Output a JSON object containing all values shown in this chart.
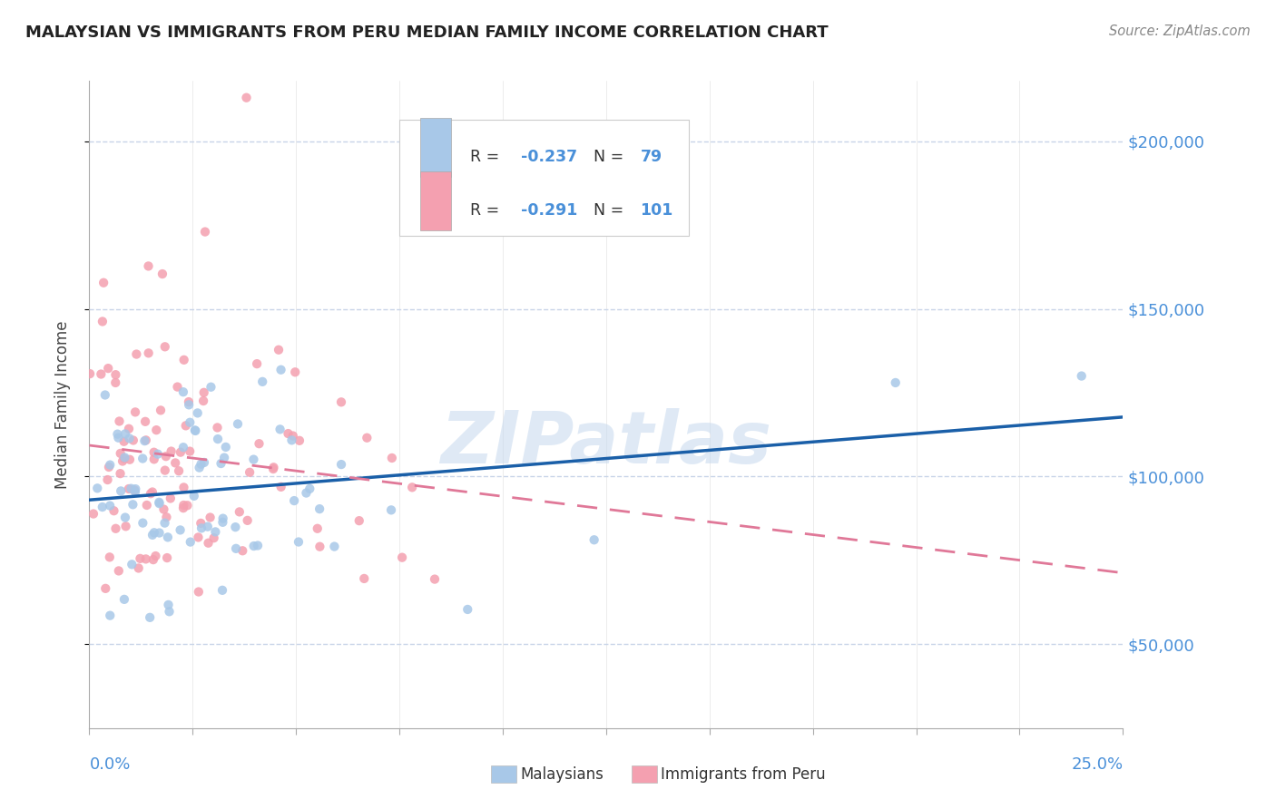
{
  "title": "MALAYSIAN VS IMMIGRANTS FROM PERU MEDIAN FAMILY INCOME CORRELATION CHART",
  "source": "Source: ZipAtlas.com",
  "ylabel": "Median Family Income",
  "yticks": [
    50000,
    100000,
    150000,
    200000
  ],
  "ytick_labels": [
    "$50,000",
    "$100,000",
    "$150,000",
    "$200,000"
  ],
  "xmin": 0.0,
  "xmax": 0.25,
  "ymin": 25000,
  "ymax": 218000,
  "malaysian_color": "#a8c8e8",
  "peru_color": "#f4a0b0",
  "malaysian_line_color": "#1a5fa8",
  "peru_line_color": "#e07898",
  "watermark_text": "ZIPatlas",
  "background_color": "#ffffff",
  "grid_color": "#c8d4e8",
  "title_color": "#222222",
  "source_color": "#888888",
  "axis_color": "#4a90d9",
  "legend_r1": "-0.237",
  "legend_n1": "79",
  "legend_r2": "-0.291",
  "legend_n2": "101"
}
